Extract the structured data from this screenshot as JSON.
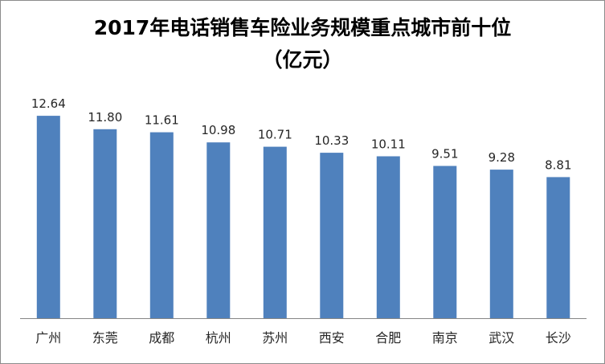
{
  "chart_data": {
    "type": "bar",
    "title_line1": "2017年电话销售车险业务规模重点城市前十位",
    "title_line2": "（亿元）",
    "categories": [
      "广州",
      "东莞",
      "成都",
      "杭州",
      "苏州",
      "西安",
      "合肥",
      "南京",
      "武汉",
      "长沙"
    ],
    "values": [
      12.64,
      11.8,
      11.61,
      10.98,
      10.71,
      10.33,
      10.11,
      9.51,
      9.28,
      8.81
    ],
    "value_labels": [
      "12.64",
      "11.80",
      "11.61",
      "10.98",
      "10.71",
      "10.33",
      "10.11",
      "9.51",
      "9.28",
      "8.81"
    ],
    "ylim": [
      0,
      14
    ],
    "grid": false,
    "legend": "none",
    "colors": {
      "bar": "#4f81bd",
      "axis": "#868686",
      "label_text": "#262626",
      "frame": "#8c8c8c"
    }
  }
}
